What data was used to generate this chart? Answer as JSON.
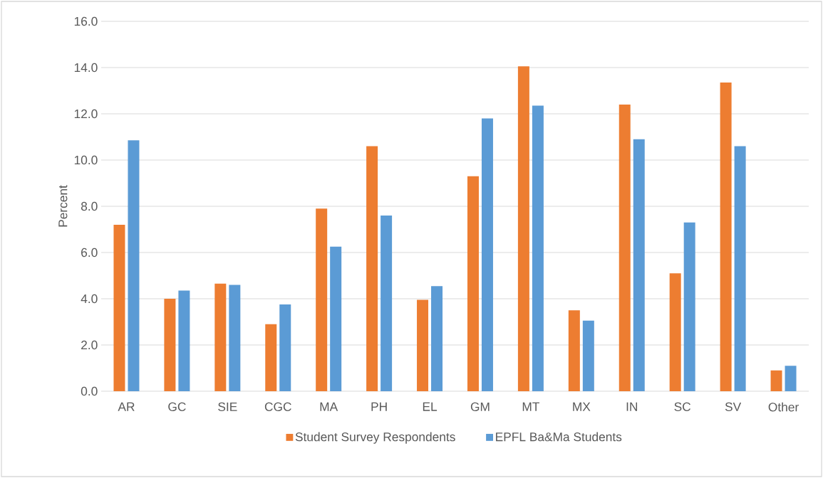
{
  "chart_data": {
    "type": "bar",
    "ylabel": "Percent",
    "categories": [
      "AR",
      "GC",
      "SIE",
      "CGC",
      "MA",
      "PH",
      "EL",
      "GM",
      "MT",
      "MX",
      "IN",
      "SC",
      "SV",
      "Other"
    ],
    "series": [
      {
        "name": "Student Survey Respondents",
        "color": "#ed7d31",
        "values": [
          7.2,
          4.0,
          4.65,
          2.9,
          7.9,
          10.6,
          3.95,
          9.3,
          14.05,
          3.5,
          12.4,
          5.1,
          13.35,
          0.9
        ]
      },
      {
        "name": "EPFL Ba&Ma Students",
        "color": "#5b9bd5",
        "values": [
          10.85,
          4.35,
          4.6,
          3.75,
          6.25,
          7.6,
          4.55,
          11.8,
          12.35,
          3.05,
          10.9,
          7.3,
          10.6,
          1.1
        ]
      }
    ],
    "ylim": [
      0,
      16
    ],
    "yticks": [
      {
        "value": 0,
        "label": "0.0"
      },
      {
        "value": 2,
        "label": "2.0"
      },
      {
        "value": 4,
        "label": "4.0"
      },
      {
        "value": 6,
        "label": "6.0"
      },
      {
        "value": 8,
        "label": "8.0"
      },
      {
        "value": 10,
        "label": "10.0"
      },
      {
        "value": 12,
        "label": "12.0"
      },
      {
        "value": 14,
        "label": "14.0"
      },
      {
        "value": 16,
        "label": "16.0"
      }
    ],
    "grid": true,
    "legend": "bottom"
  }
}
